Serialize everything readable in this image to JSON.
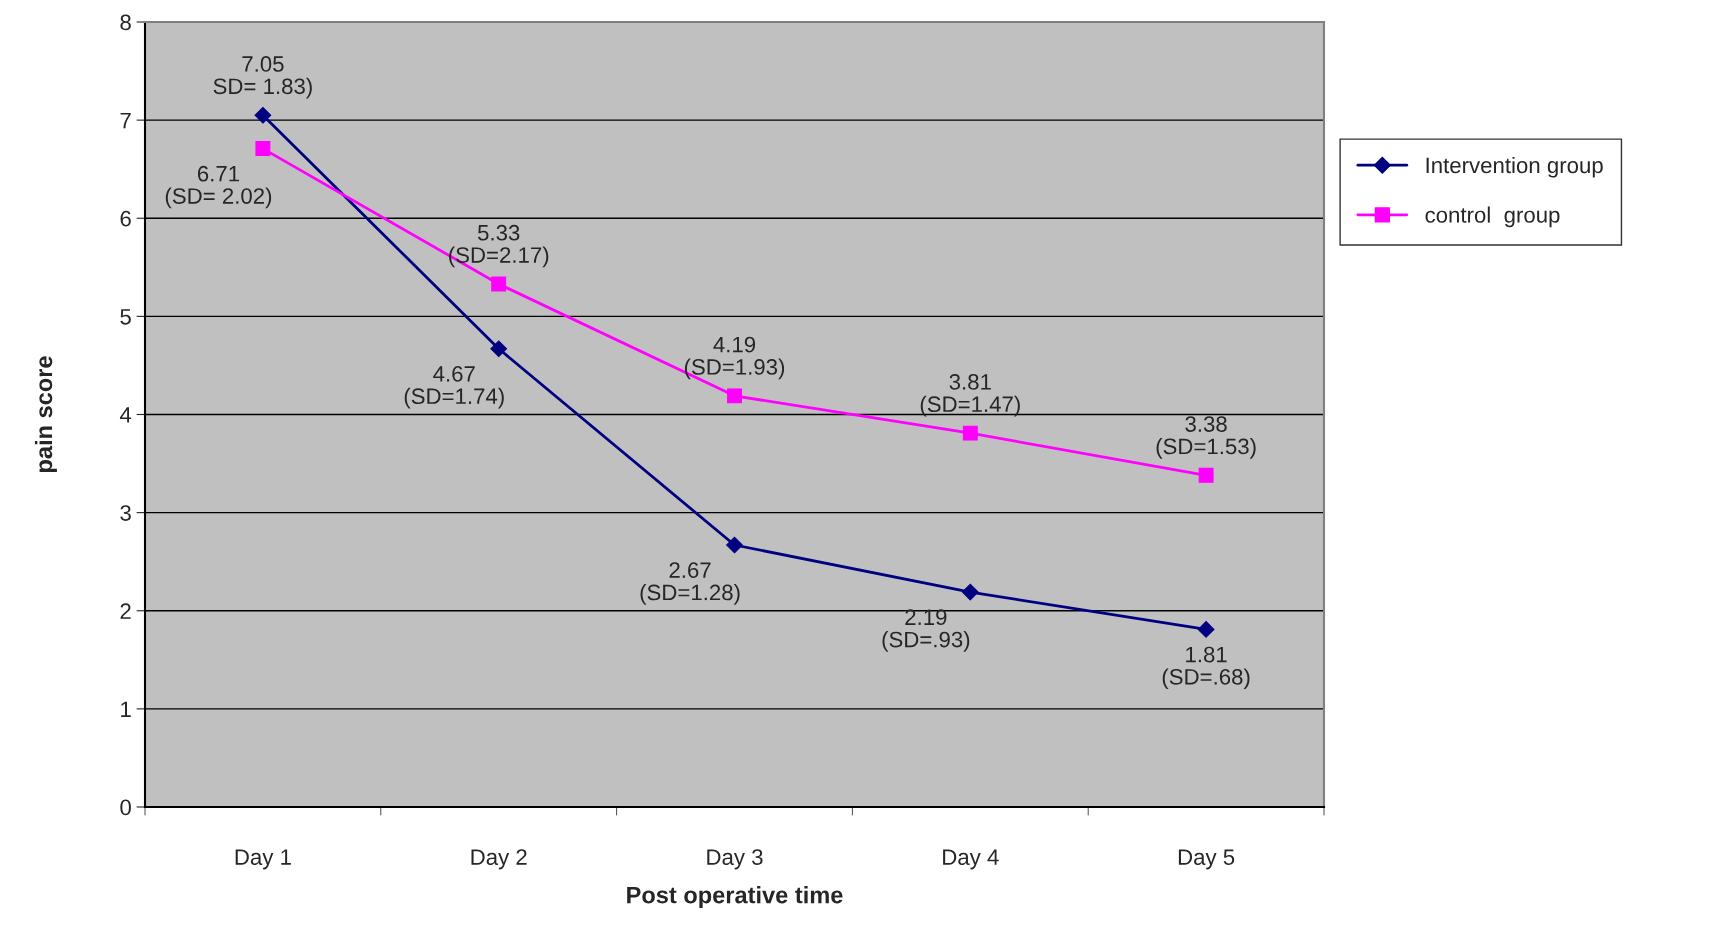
{
  "chart_data": {
    "type": "line",
    "xlabel": "Post operative time",
    "ylabel": "pain score",
    "categories": [
      "Day 1",
      "Day 2",
      "Day 3",
      "Day 4",
      "Day 5"
    ],
    "series": [
      {
        "name": "Intervention group",
        "color": "#000080",
        "marker": "diamond",
        "values": [
          7.05,
          4.67,
          2.67,
          2.19,
          1.81
        ],
        "value_labels": [
          "7.05\nSD= 1.83)",
          "4.67\n(SD=1.74)",
          "2.67\n(SD=1.28)",
          "2.19\n(SD=.93)",
          "1.81\n(SD=.68)"
        ]
      },
      {
        "name": "control  group",
        "color": "#ff00ff",
        "marker": "square",
        "values": [
          6.71,
          5.33,
          4.19,
          3.81,
          3.38
        ],
        "value_labels": [
          "6.71\n(SD= 2.02)",
          "5.33\n(SD=2.17)",
          "4.19\n(SD=1.93)",
          "3.81\n(SD=1.47)",
          "3.38\n(SD=1.53)"
        ]
      }
    ],
    "ylim": [
      0,
      8
    ],
    "yticks": [
      0,
      1,
      2,
      3,
      4,
      5,
      6,
      7,
      8
    ],
    "grid": "y",
    "legend": "right",
    "line_style": "solid"
  }
}
